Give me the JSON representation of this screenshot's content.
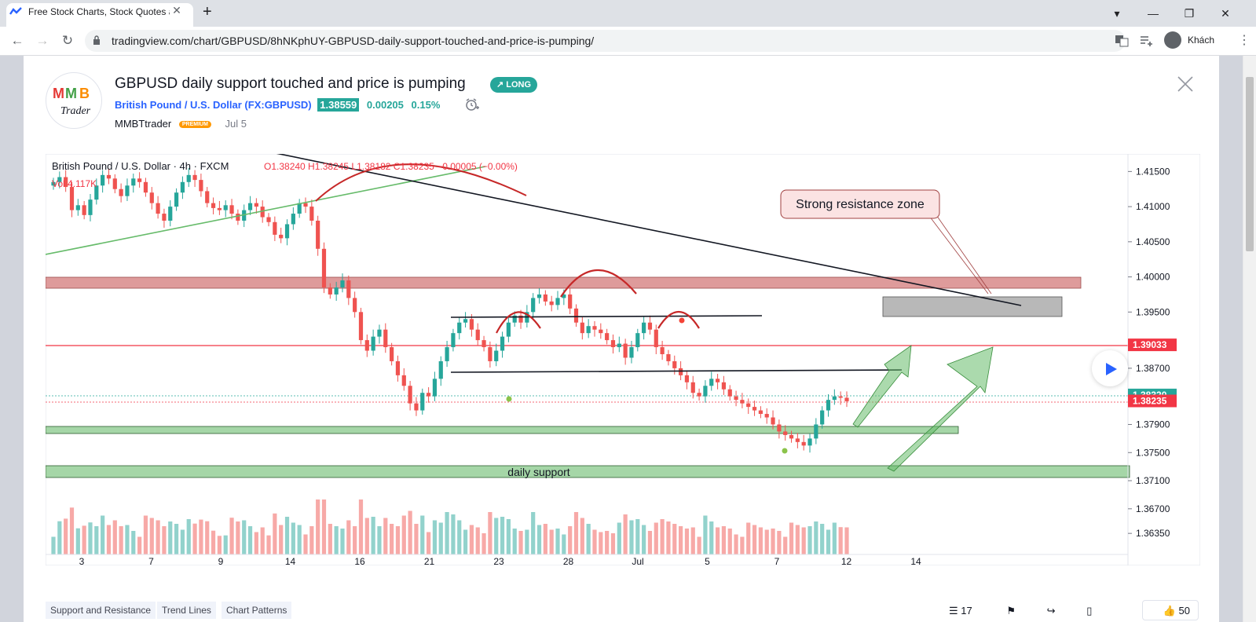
{
  "browser": {
    "tab_title": "Free Stock Charts, Stock Quotes and Trade Ideas — TradingView",
    "new_tab_label": "+",
    "url": "tradingview.com/chart/GBPUSD/8hNKphUY-GBPUSD-daily-support-touched-and-price-is-pumping/",
    "profile_name": "Khách"
  },
  "idea": {
    "title": "GBPUSD daily support touched and price is pumping",
    "direction_badge": "↗ LONG",
    "symbol_name": "British Pound / U.S. Dollar",
    "symbol_ticker": "(FX:GBPUSD)",
    "price": "1.38559",
    "change_abs": "0.00205",
    "change_pct": "0.15%",
    "author": "MMBTtrader",
    "author_badge": "PREMIUM",
    "date": "Jul 5",
    "logo_text": "MMB Trader"
  },
  "chart_legend": {
    "series": "British Pound / U.S. Dollar · 4h · FXCM",
    "ohlc": "O1.38240 H1.38245 L1.38182 C1.38235 −0.00005 (−0.00%)",
    "volume": "Vol  4.117K"
  },
  "chart_data": {
    "type": "candlestick",
    "title": "",
    "price_axis": {
      "ticks": [
        "1.41500",
        "1.41000",
        "1.40500",
        "1.40000",
        "1.39500",
        "1.38700",
        "1.37900",
        "1.37500",
        "1.37100",
        "1.36700",
        "1.36350"
      ],
      "range": [
        1.3605,
        1.4175
      ]
    },
    "time_axis": {
      "ticks": [
        "3",
        "7",
        "9",
        "14",
        "16",
        "21",
        "23",
        "28",
        "Jul",
        "5",
        "7",
        "12",
        "14"
      ]
    },
    "price_labels": [
      {
        "value": "1.39033",
        "color": "#f23645"
      },
      {
        "value": "1.38320",
        "color": "#26a69a"
      },
      {
        "value": "1.38235",
        "color": "#f23645"
      }
    ],
    "closes": [
      1.4135,
      1.4142,
      1.4128,
      1.4095,
      1.4102,
      1.4088,
      1.411,
      1.413,
      1.4145,
      1.414,
      1.4125,
      1.4115,
      1.413,
      1.414,
      1.4135,
      1.412,
      1.4105,
      1.409,
      1.408,
      1.41,
      1.412,
      1.4135,
      1.4145,
      1.4138,
      1.4122,
      1.4105,
      1.4098,
      1.4095,
      1.4102,
      1.409,
      1.408,
      1.4095,
      1.4105,
      1.41,
      1.4085,
      1.4078,
      1.406,
      1.4055,
      1.4075,
      1.409,
      1.4105,
      1.41,
      1.408,
      1.404,
      1.3985,
      1.3975,
      1.3985,
      1.3995,
      1.397,
      1.395,
      1.391,
      1.3895,
      1.3915,
      1.3925,
      1.39,
      1.388,
      1.386,
      1.3845,
      1.382,
      1.381,
      1.3835,
      1.383,
      1.3855,
      1.388,
      1.39,
      1.392,
      1.3935,
      1.394,
      1.3925,
      1.391,
      1.39,
      1.388,
      1.3895,
      1.3915,
      1.3935,
      1.3945,
      1.3935,
      1.395,
      1.397,
      1.3975,
      1.3965,
      1.396,
      1.397,
      1.3975,
      1.3955,
      1.3935,
      1.392,
      1.393,
      1.3925,
      1.392,
      1.391,
      1.39,
      1.3905,
      1.3885,
      1.39,
      1.392,
      1.3935,
      1.3925,
      1.39,
      1.389,
      1.388,
      1.387,
      1.386,
      1.385,
      1.3835,
      1.383,
      1.3845,
      1.3855,
      1.385,
      1.384,
      1.383,
      1.3825,
      1.382,
      1.3815,
      1.381,
      1.3805,
      1.38,
      1.379,
      1.378,
      1.3775,
      1.377,
      1.3765,
      1.376,
      1.377,
      1.379,
      1.381,
      1.3825,
      1.383,
      1.3828,
      1.3823
    ],
    "annotations": {
      "text_box": "Strong resistance zone",
      "zone_label": "daily support"
    }
  },
  "tags": [
    "Support and Resistance",
    "Trend Lines",
    "Chart Patterns"
  ],
  "stats": {
    "comments": "17",
    "likes": "50"
  }
}
